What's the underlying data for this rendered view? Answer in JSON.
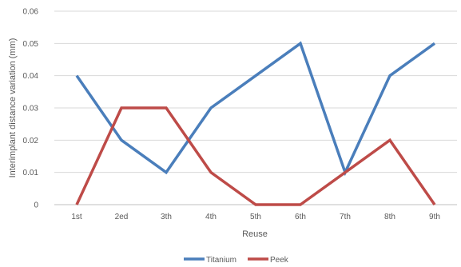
{
  "chart_data": {
    "type": "line",
    "categories": [
      "1st",
      "2ed",
      "3th",
      "4th",
      "5th",
      "6th",
      "7th",
      "8th",
      "9th"
    ],
    "series": [
      {
        "name": "Titanium",
        "color": "#4a7ebb",
        "values": [
          0.04,
          0.02,
          0.01,
          0.03,
          0.04,
          0.05,
          0.01,
          0.04,
          0.05
        ]
      },
      {
        "name": "Peek",
        "color": "#be4b48",
        "values": [
          0,
          0.03,
          0.03,
          0.01,
          0,
          0,
          0.01,
          0.02,
          0
        ]
      }
    ],
    "yticks": [
      "0",
      "0.01",
      "0.02",
      "0.03",
      "0.04",
      "0.05",
      "0.06"
    ],
    "xlabel": "Reuse",
    "ylabel": "Interimplant distance variation (mm)",
    "ylim": [
      0,
      0.06
    ],
    "grid": true,
    "legend_position": "bottom"
  }
}
